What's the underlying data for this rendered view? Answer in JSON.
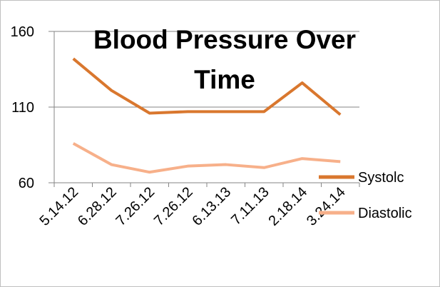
{
  "chart_data": {
    "type": "line",
    "title": "Blood Pressure Over Time",
    "categories": [
      "5.14.12",
      "6.28.12",
      "7.26.12",
      "7.26.12",
      "6.13.13",
      "7.11.13",
      "2.18.14",
      "3.24.14"
    ],
    "series": [
      {
        "name": "Systolc",
        "color": "#d9772e",
        "values": [
          142,
          121,
          106,
          107,
          107,
          107,
          126,
          105
        ]
      },
      {
        "name": "Diastolic",
        "color": "#f7b08a",
        "values": [
          86,
          72,
          67,
          71,
          72,
          70,
          76,
          74
        ]
      }
    ],
    "ylim": [
      60,
      160
    ],
    "yticks": [
      60,
      110,
      160
    ],
    "grid": true,
    "legend": "right"
  }
}
